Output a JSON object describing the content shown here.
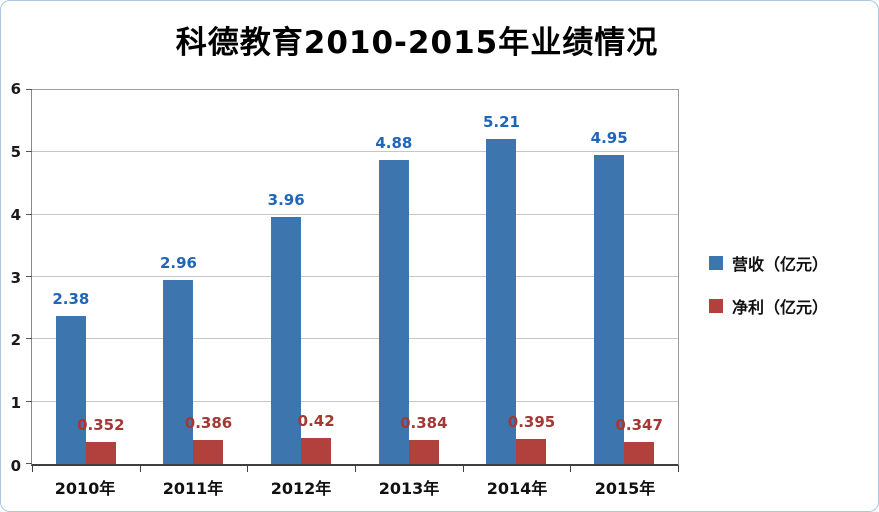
{
  "chart_data": {
    "type": "bar",
    "title": "科德教育2010-2015年业绩情况",
    "categories": [
      "2010年",
      "2011年",
      "2012年",
      "2013年",
      "2014年",
      "2015年"
    ],
    "series": [
      {
        "name": "营收（亿元）",
        "color": "#3d76ae",
        "values": [
          2.38,
          2.96,
          3.96,
          4.88,
          5.21,
          4.95
        ]
      },
      {
        "name": "净利（亿元）",
        "color": "#b2403c",
        "values": [
          0.352,
          0.386,
          0.42,
          0.384,
          0.395,
          0.347
        ]
      }
    ],
    "label_colors": [
      "#1f66b8",
      "#a33835"
    ],
    "ylim": [
      0,
      6
    ],
    "yticks": [
      0,
      1,
      2,
      3,
      4,
      5,
      6
    ],
    "grid": true,
    "legend_position": "right"
  }
}
